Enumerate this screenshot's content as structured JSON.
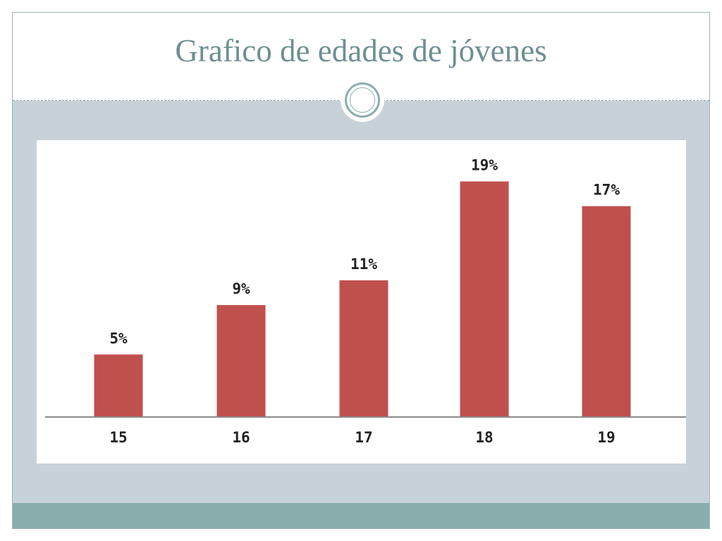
{
  "title": "Grafico de edades de jóvenes",
  "colors": {
    "bar": "#c0504d",
    "title": "#6e8f92",
    "accent": "#8aaeae",
    "background": "#c7d2d8"
  },
  "chart_data": {
    "type": "bar",
    "title": "",
    "xlabel": "",
    "ylabel": "",
    "categories": [
      "15",
      "16",
      "17",
      "18",
      "19"
    ],
    "values": [
      5,
      9,
      11,
      19,
      17
    ],
    "data_labels": [
      "5%",
      "9%",
      "11%",
      "19%",
      "17%"
    ],
    "ylim": [
      0,
      20
    ],
    "grid": false,
    "legend": "none"
  }
}
